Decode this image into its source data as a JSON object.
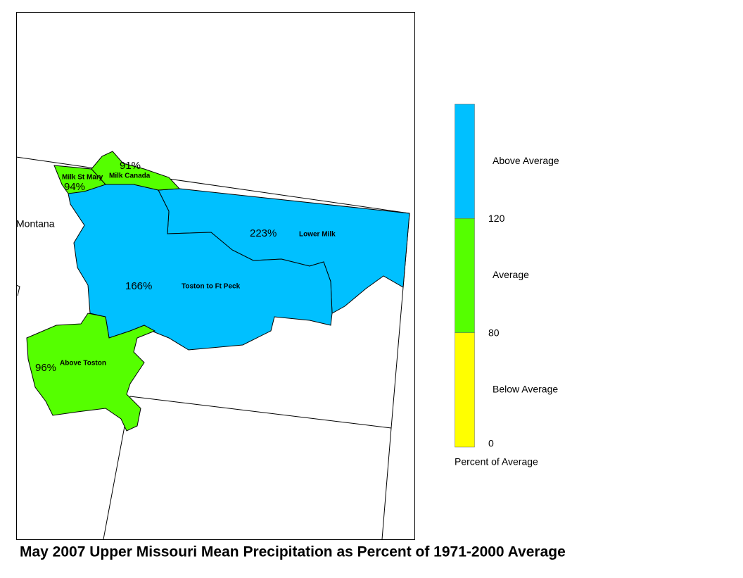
{
  "title": "May 2007 Upper Missouri Mean Precipitation as Percent of 1971-2000 Average",
  "state_label": "Montana",
  "basins": [
    {
      "name": "Milk St Mary",
      "value": 94,
      "value_label": "94%"
    },
    {
      "name": "Milk Canada",
      "value": 91,
      "value_label": "91%"
    },
    {
      "name": "Lower Milk",
      "value": 223,
      "value_label": "223%"
    },
    {
      "name": "Toston to Ft Peck",
      "value": 166,
      "value_label": "166%"
    },
    {
      "name": "Above Toston",
      "value": 96,
      "value_label": "96%"
    }
  ],
  "legend": {
    "title": "Percent of Average",
    "classes": [
      {
        "label": "Above Average",
        "color": "#00c0ff"
      },
      {
        "label": "Average",
        "color": "#55ff00"
      },
      {
        "label": "Below Average",
        "color": "#ffff00"
      }
    ],
    "breaks": [
      0,
      80,
      120
    ]
  }
}
